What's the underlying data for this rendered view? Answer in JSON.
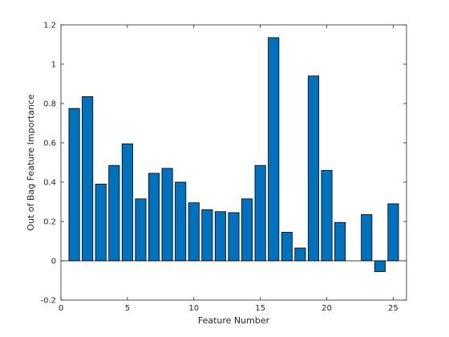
{
  "chart_data": {
    "type": "bar",
    "xlabel": "Feature Number",
    "ylabel": "Out of Bag Feature Importance",
    "xlim": [
      0,
      26
    ],
    "ylim": [
      -0.2,
      1.2
    ],
    "x": [
      1,
      2,
      3,
      4,
      5,
      6,
      7,
      8,
      9,
      10,
      11,
      12,
      13,
      14,
      15,
      16,
      17,
      18,
      19,
      20,
      21,
      22,
      23,
      24,
      25
    ],
    "values": [
      0.775,
      0.835,
      0.39,
      0.485,
      0.595,
      0.315,
      0.445,
      0.47,
      0.4,
      0.295,
      0.26,
      0.25,
      0.245,
      0.315,
      0.485,
      1.135,
      0.145,
      0.065,
      0.94,
      0.46,
      0.195,
      0,
      0.235,
      -0.055,
      0.29
    ],
    "xticks": [
      0,
      5,
      10,
      15,
      20,
      25
    ],
    "xtick_labels": [
      "0",
      "5",
      "10",
      "15",
      "20",
      "25"
    ],
    "yticks": [
      -0.2,
      0,
      0.2,
      0.4,
      0.6,
      0.8,
      1,
      1.2
    ],
    "ytick_labels": [
      "-0.2",
      "0",
      "0.2",
      "0.4",
      "0.6",
      "0.8",
      "1",
      "1.2"
    ],
    "grid": false,
    "colors": {
      "bar_fill": "#0072BD",
      "bar_edge": "#000000",
      "axis": "#262626"
    }
  }
}
